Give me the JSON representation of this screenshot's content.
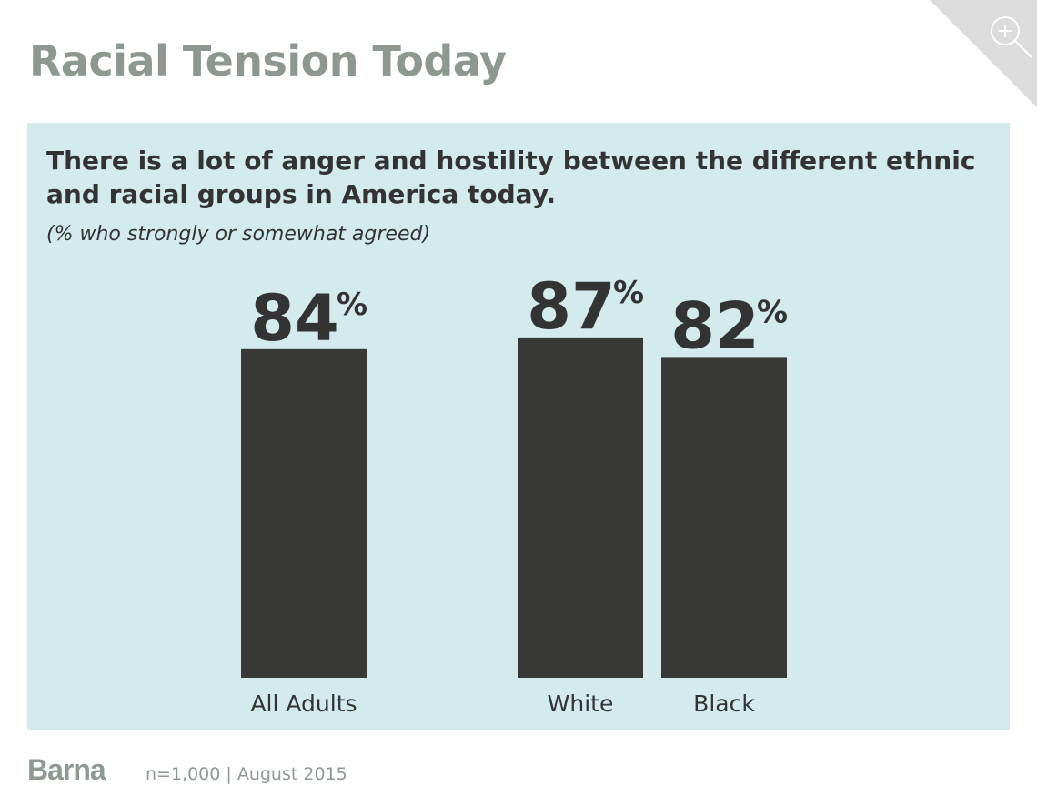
{
  "header": {
    "title": "Racial Tension Today"
  },
  "icons": {
    "zoom": "zoom-in-icon"
  },
  "colors": {
    "panel": "#d3ebec",
    "bar": "#383836",
    "title": "#8c9890",
    "text": "#333333"
  },
  "footer": {
    "logo": "Barna",
    "note": "n=1,000 | August 2015"
  },
  "chart_data": {
    "type": "bar",
    "title": "There is a lot of anger and hostility between the different ethnic and racial groups in America today.",
    "subtitle": "(% who strongly or somewhat agreed)",
    "categories": [
      "All Adults",
      "White",
      "Black"
    ],
    "values": [
      84,
      87,
      82
    ],
    "value_labels": [
      "84",
      "87",
      "82"
    ],
    "unit": "%",
    "ylim": [
      0,
      100
    ],
    "grid": false,
    "legend": "none"
  }
}
